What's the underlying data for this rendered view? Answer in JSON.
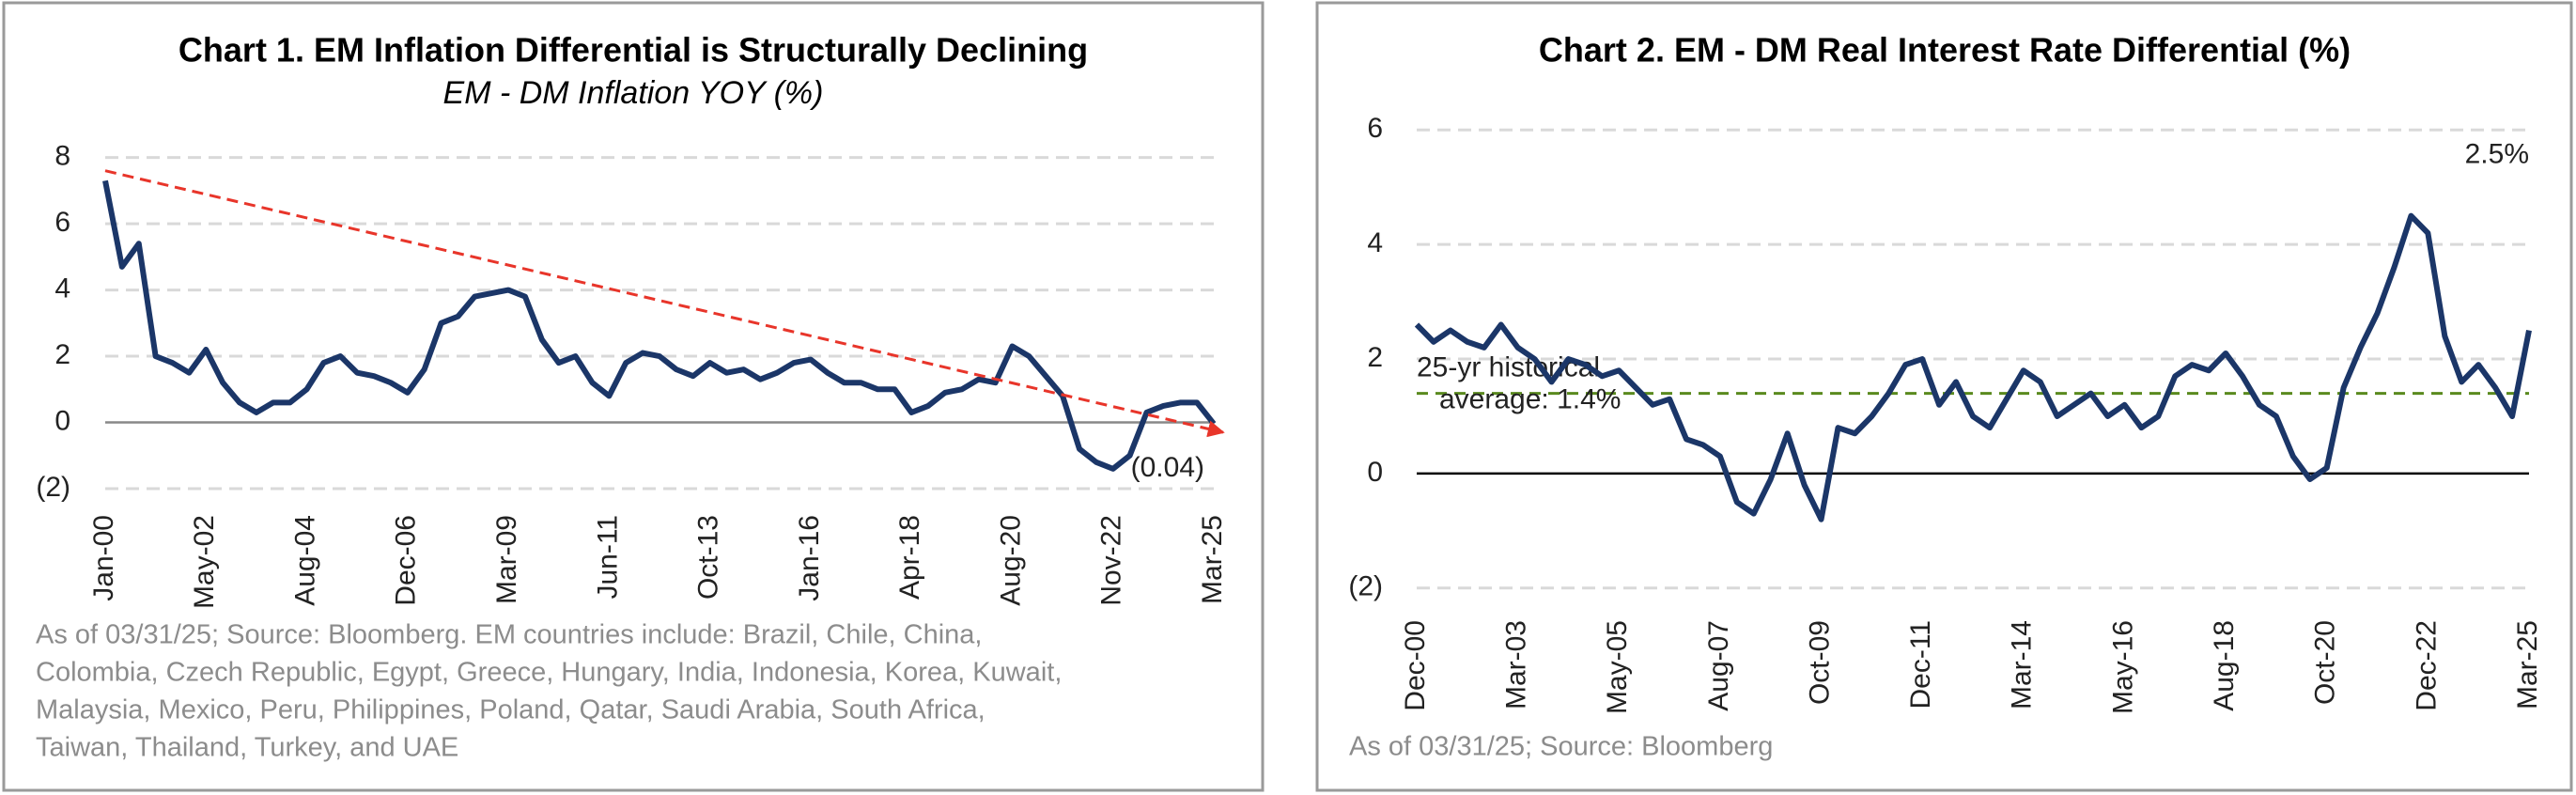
{
  "chart_data": [
    {
      "type": "line",
      "title": "Chart 1. EM Inflation Differential is Structurally Declining",
      "subtitle": "EM - DM Inflation YOY (%)",
      "categories": [
        "Jan-00",
        null,
        null,
        null,
        null,
        null,
        "May-02",
        null,
        null,
        null,
        null,
        null,
        "Aug-04",
        null,
        null,
        null,
        null,
        null,
        "Dec-06",
        null,
        null,
        null,
        null,
        null,
        "Mar-09",
        null,
        null,
        null,
        null,
        null,
        "Jun-11",
        null,
        null,
        null,
        null,
        null,
        "Oct-13",
        null,
        null,
        null,
        null,
        null,
        "Jan-16",
        null,
        null,
        null,
        null,
        null,
        "Apr-18",
        null,
        null,
        null,
        null,
        null,
        "Aug-20",
        null,
        null,
        null,
        null,
        null,
        "Nov-22",
        null,
        null,
        null,
        null,
        null,
        "Mar-25"
      ],
      "values": [
        7.3,
        4.7,
        5.4,
        2.0,
        1.8,
        1.5,
        2.2,
        1.2,
        0.6,
        0.3,
        0.6,
        0.6,
        1.0,
        1.8,
        2.0,
        1.5,
        1.4,
        1.2,
        0.9,
        1.6,
        3.0,
        3.2,
        3.8,
        3.9,
        4.0,
        3.8,
        2.5,
        1.8,
        2.0,
        1.2,
        0.8,
        1.8,
        2.1,
        2.0,
        1.6,
        1.4,
        1.8,
        1.5,
        1.6,
        1.3,
        1.5,
        1.8,
        1.9,
        1.5,
        1.2,
        1.2,
        1.0,
        1.0,
        0.3,
        0.5,
        0.9,
        1.0,
        1.3,
        1.2,
        2.3,
        2.0,
        1.4,
        0.8,
        -0.8,
        -1.2,
        -1.4,
        -1.0,
        0.3,
        0.5,
        0.6,
        0.6,
        -0.04
      ],
      "last_value_label": "(0.04)",
      "color": "#1b3668",
      "trend": {
        "start": 7.6,
        "end": -0.3,
        "color": "#e8352a"
      },
      "ylim": [
        -2,
        8.5
      ],
      "yticks": [
        {
          "value": -2,
          "label": "(2)"
        },
        0,
        2,
        4,
        6,
        8
      ],
      "grid": true,
      "zero_line_color": "#888888",
      "footnote": [
        "As of 03/31/25; Source: Bloomberg. EM countries include: Brazil,  Chile, China,",
        "Colombia, Czech Republic, Egypt, Greece, Hungary, India, Indonesia, Korea, Kuwait,",
        "Malaysia, Mexico, Peru, Philippines, Poland, Qatar, Saudi Arabia, South Africa,",
        "Taiwan,  Thailand,  Turkey, and UAE"
      ]
    },
    {
      "type": "line",
      "title": "Chart 2. EM - DM Real Interest Rate Differential (%)",
      "categories": [
        "Dec-00",
        null,
        null,
        null,
        null,
        null,
        "Mar-03",
        null,
        null,
        null,
        null,
        null,
        "May-05",
        null,
        null,
        null,
        null,
        null,
        "Aug-07",
        null,
        null,
        null,
        null,
        null,
        "Oct-09",
        null,
        null,
        null,
        null,
        null,
        "Dec-11",
        null,
        null,
        null,
        null,
        null,
        "Mar-14",
        null,
        null,
        null,
        null,
        null,
        "May-16",
        null,
        null,
        null,
        null,
        null,
        "Aug-18",
        null,
        null,
        null,
        null,
        null,
        "Oct-20",
        null,
        null,
        null,
        null,
        null,
        "Dec-22",
        null,
        null,
        null,
        null,
        null,
        "Mar-25"
      ],
      "values": [
        2.6,
        2.3,
        2.5,
        2.3,
        2.2,
        2.6,
        2.2,
        2.0,
        1.6,
        2.0,
        1.9,
        1.7,
        1.8,
        1.5,
        1.2,
        1.3,
        0.6,
        0.5,
        0.3,
        -0.5,
        -0.7,
        -0.1,
        0.7,
        -0.2,
        -0.8,
        0.8,
        0.7,
        1.0,
        1.4,
        1.9,
        2.0,
        1.2,
        1.6,
        1.0,
        0.8,
        1.3,
        1.8,
        1.6,
        1.0,
        1.2,
        1.4,
        1.0,
        1.2,
        0.8,
        1.0,
        1.7,
        1.9,
        1.8,
        2.1,
        1.7,
        1.2,
        1.0,
        0.3,
        -0.1,
        0.1,
        1.5,
        2.2,
        2.8,
        3.6,
        4.5,
        4.2,
        2.4,
        1.6,
        1.9,
        1.5,
        1.0,
        2.5
      ],
      "last_value_label": "2.5%",
      "color": "#1b3668",
      "average": 1.4,
      "average_color": "#5a8a1e",
      "average_label": [
        "25-yr historical",
        "average: 1.4%"
      ],
      "ylim": [
        -2.2,
        6.3
      ],
      "yticks": [
        {
          "value": -2,
          "label": "(2)"
        },
        0,
        2,
        4,
        6
      ],
      "grid": true,
      "zero_line_color": "#000000",
      "footnote": [
        "As of 03/31/25; Source: Bloomberg"
      ]
    }
  ]
}
